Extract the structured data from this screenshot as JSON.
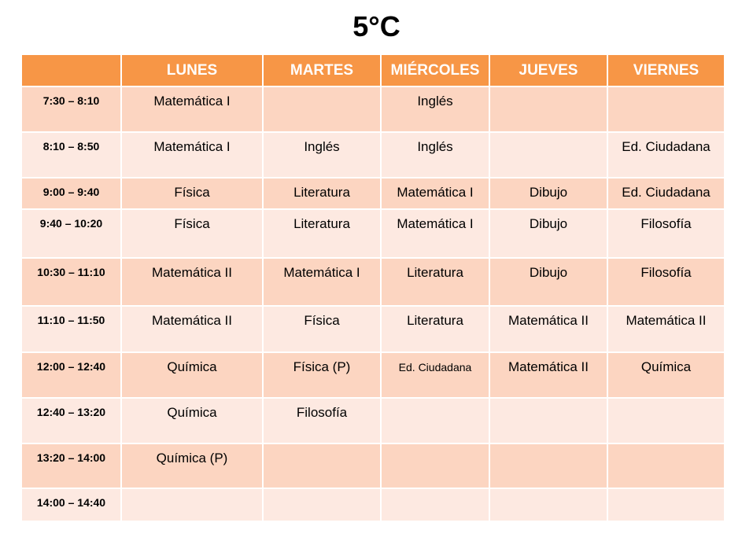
{
  "title": "5°C",
  "headers": [
    "",
    "LUNES",
    "MARTES",
    "MIÉRCOLES",
    "JUEVES",
    "VIERNES"
  ],
  "rows": [
    {
      "time": "7:30 – 8:10",
      "cells": [
        "Matemática I",
        "",
        "Inglés",
        "",
        ""
      ]
    },
    {
      "time": "8:10 – 8:50",
      "cells": [
        "Matemática I",
        "Inglés",
        "Inglés",
        "",
        "Ed. Ciudadana"
      ]
    },
    {
      "time": "9:00 – 9:40",
      "cells": [
        "Física",
        "Literatura",
        "Matemática I",
        "Dibujo",
        "Ed. Ciudadana"
      ]
    },
    {
      "time": "9:40 – 10:20",
      "cells": [
        "Física",
        "Literatura",
        "Matemática I",
        "Dibujo",
        "Filosofía"
      ]
    },
    {
      "time": "10:30 – 11:10",
      "cells": [
        "Matemática II",
        "Matemática I",
        "Literatura",
        "Dibujo",
        "Filosofía"
      ]
    },
    {
      "time": "11:10 – 11:50",
      "cells": [
        "Matemática II",
        "Física",
        "Literatura",
        "Matemática II",
        "Matemática II"
      ]
    },
    {
      "time": "12:00 – 12:40",
      "cells": [
        "Química",
        "Física (P)",
        "Ed. Ciudadana",
        "Matemática II",
        "Química"
      ]
    },
    {
      "time": "12:40 – 13:20",
      "cells": [
        "Química",
        "Filosofía",
        "",
        "",
        ""
      ]
    },
    {
      "time": "13:20 – 14:00",
      "cells": [
        "Química (P)",
        "",
        "",
        "",
        ""
      ]
    },
    {
      "time": "14:00 – 14:40",
      "cells": [
        "",
        "",
        "",
        "",
        ""
      ]
    }
  ],
  "colors": {
    "header": "#f79646",
    "row_dark": "#fcd5c1",
    "row_light": "#fde9e1"
  }
}
